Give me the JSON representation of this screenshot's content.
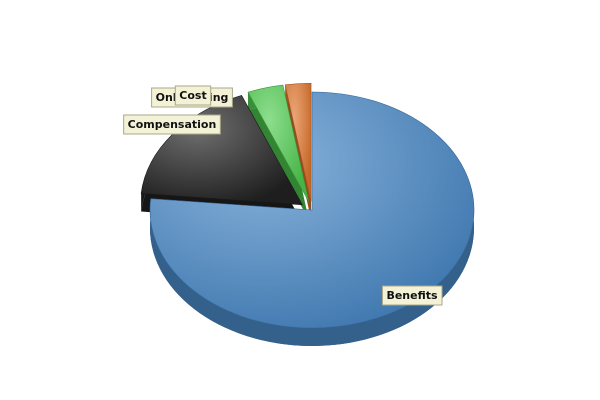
{
  "chart_data": {
    "type": "pie",
    "style": "3d-exploded",
    "title": "",
    "legend": "none",
    "slices": [
      {
        "label": "Benefits",
        "value": 75.0,
        "color": "#4a8ac8",
        "exploded": false
      },
      {
        "label": "Compensation",
        "value": 17.0,
        "color": "#222222",
        "exploded": true
      },
      {
        "label": "Onboarding",
        "value": 3.5,
        "color": "#4fcc4f",
        "exploded": true
      },
      {
        "label": "Cost",
        "value": 2.5,
        "color": "#e0752c",
        "exploded": true
      }
    ],
    "label_style": {
      "box_fill": "#f4f2d6",
      "box_stroke": "#a8a888"
    }
  }
}
